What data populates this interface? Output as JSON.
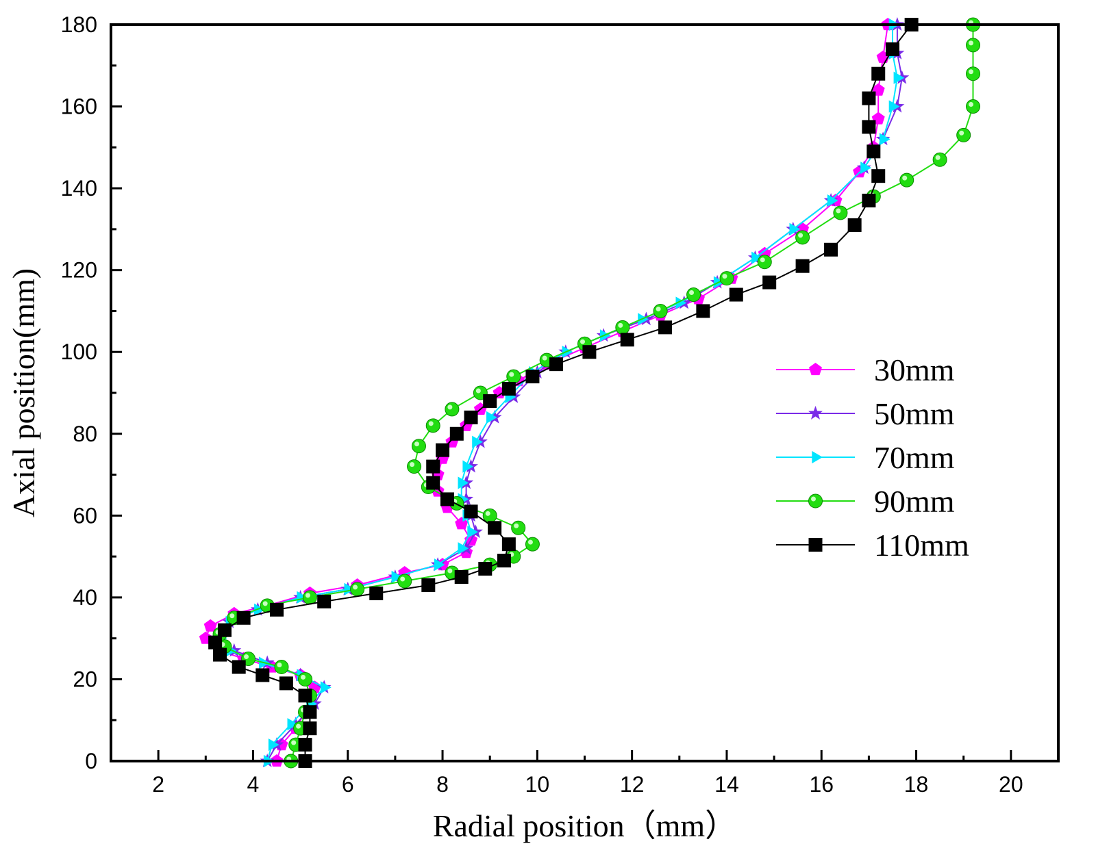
{
  "chart_data": {
    "type": "line",
    "title": "",
    "xlabel": "Radial position（mm）",
    "ylabel": "Axial position(mm)",
    "xlim": [
      1,
      21
    ],
    "ylim": [
      0,
      180
    ],
    "x_ticks": [
      "2",
      "4",
      "6",
      "8",
      "10",
      "12",
      "14",
      "16",
      "18",
      "20"
    ],
    "y_ticks": [
      "0",
      "20",
      "40",
      "60",
      "80",
      "100",
      "120",
      "140",
      "160",
      "180"
    ],
    "grid": false,
    "legend_position": "right",
    "series": [
      {
        "name": "30mm",
        "color": "#ff00ff",
        "marker": "pentagon",
        "points": [
          [
            4.5,
            0
          ],
          [
            4.6,
            4
          ],
          [
            4.9,
            8
          ],
          [
            5.1,
            12
          ],
          [
            5.2,
            16
          ],
          [
            5.3,
            18
          ],
          [
            5.0,
            21
          ],
          [
            4.4,
            23
          ],
          [
            3.8,
            25
          ],
          [
            3.3,
            27
          ],
          [
            3.0,
            30
          ],
          [
            3.1,
            33
          ],
          [
            3.6,
            36
          ],
          [
            4.3,
            38
          ],
          [
            5.2,
            41
          ],
          [
            6.2,
            43
          ],
          [
            7.2,
            46
          ],
          [
            8.0,
            48
          ],
          [
            8.5,
            51
          ],
          [
            8.6,
            54
          ],
          [
            8.4,
            58
          ],
          [
            8.1,
            62
          ],
          [
            7.9,
            66
          ],
          [
            7.9,
            70
          ],
          [
            8.0,
            74
          ],
          [
            8.2,
            78
          ],
          [
            8.5,
            82
          ],
          [
            8.8,
            86
          ],
          [
            9.2,
            90
          ],
          [
            9.6,
            93
          ],
          [
            10.2,
            97
          ],
          [
            11.0,
            101
          ],
          [
            11.8,
            105
          ],
          [
            12.6,
            109
          ],
          [
            13.4,
            113
          ],
          [
            14.1,
            118
          ],
          [
            14.8,
            124
          ],
          [
            15.6,
            130
          ],
          [
            16.3,
            137
          ],
          [
            16.8,
            144
          ],
          [
            17.1,
            150
          ],
          [
            17.2,
            157
          ],
          [
            17.2,
            164
          ],
          [
            17.3,
            172
          ],
          [
            17.4,
            180
          ]
        ]
      },
      {
        "name": "50mm",
        "color": "#7a2be8",
        "marker": "star",
        "points": [
          [
            4.3,
            0
          ],
          [
            4.5,
            4
          ],
          [
            4.9,
            9
          ],
          [
            5.3,
            14
          ],
          [
            5.5,
            18
          ],
          [
            5.0,
            21
          ],
          [
            4.3,
            24
          ],
          [
            3.6,
            27
          ],
          [
            3.3,
            30
          ],
          [
            3.5,
            34
          ],
          [
            4.1,
            37
          ],
          [
            5.0,
            40
          ],
          [
            6.0,
            42
          ],
          [
            7.0,
            45
          ],
          [
            7.9,
            48
          ],
          [
            8.5,
            52
          ],
          [
            8.7,
            56
          ],
          [
            8.6,
            60
          ],
          [
            8.5,
            64
          ],
          [
            8.5,
            68
          ],
          [
            8.6,
            72
          ],
          [
            8.8,
            78
          ],
          [
            9.1,
            84
          ],
          [
            9.5,
            89
          ],
          [
            10.0,
            95
          ],
          [
            10.6,
            100
          ],
          [
            11.4,
            104
          ],
          [
            12.3,
            108
          ],
          [
            13.1,
            112
          ],
          [
            13.8,
            117
          ],
          [
            14.6,
            123
          ],
          [
            15.4,
            130
          ],
          [
            16.2,
            137
          ],
          [
            16.9,
            145
          ],
          [
            17.3,
            152
          ],
          [
            17.6,
            160
          ],
          [
            17.7,
            167
          ],
          [
            17.6,
            173
          ],
          [
            17.6,
            180
          ]
        ]
      },
      {
        "name": "70mm",
        "color": "#00e5ff",
        "marker": "triangle-right",
        "points": [
          [
            4.3,
            0
          ],
          [
            4.4,
            4
          ],
          [
            4.8,
            9
          ],
          [
            5.2,
            14
          ],
          [
            5.5,
            18
          ],
          [
            5.0,
            21
          ],
          [
            4.2,
            24
          ],
          [
            3.5,
            27
          ],
          [
            3.3,
            30
          ],
          [
            3.5,
            34
          ],
          [
            4.1,
            37
          ],
          [
            5.0,
            40
          ],
          [
            6.0,
            42
          ],
          [
            7.0,
            45
          ],
          [
            7.9,
            48
          ],
          [
            8.4,
            52
          ],
          [
            8.6,
            56
          ],
          [
            8.5,
            60
          ],
          [
            8.4,
            64
          ],
          [
            8.4,
            68
          ],
          [
            8.5,
            72
          ],
          [
            8.7,
            78
          ],
          [
            9.0,
            84
          ],
          [
            9.4,
            89
          ],
          [
            9.9,
            95
          ],
          [
            10.6,
            100
          ],
          [
            11.4,
            104
          ],
          [
            12.2,
            108
          ],
          [
            13.0,
            112
          ],
          [
            13.8,
            117
          ],
          [
            14.6,
            123
          ],
          [
            15.4,
            130
          ],
          [
            16.2,
            137
          ],
          [
            16.9,
            145
          ],
          [
            17.3,
            152
          ],
          [
            17.5,
            160
          ],
          [
            17.6,
            167
          ],
          [
            17.5,
            173
          ],
          [
            17.5,
            180
          ]
        ]
      },
      {
        "name": "90mm",
        "color": "#22dd11",
        "marker": "circle",
        "points": [
          [
            4.8,
            0
          ],
          [
            4.9,
            4
          ],
          [
            5.0,
            8
          ],
          [
            5.1,
            12
          ],
          [
            5.2,
            16
          ],
          [
            5.1,
            20
          ],
          [
            4.6,
            23
          ],
          [
            3.9,
            25
          ],
          [
            3.4,
            28
          ],
          [
            3.3,
            31
          ],
          [
            3.6,
            35
          ],
          [
            4.3,
            38
          ],
          [
            5.2,
            40
          ],
          [
            6.2,
            42
          ],
          [
            7.2,
            44
          ],
          [
            8.2,
            46
          ],
          [
            9.0,
            48
          ],
          [
            9.5,
            50
          ],
          [
            9.9,
            53
          ],
          [
            9.6,
            57
          ],
          [
            9.0,
            60
          ],
          [
            8.3,
            63
          ],
          [
            7.7,
            67
          ],
          [
            7.4,
            72
          ],
          [
            7.5,
            77
          ],
          [
            7.8,
            82
          ],
          [
            8.2,
            86
          ],
          [
            8.8,
            90
          ],
          [
            9.5,
            94
          ],
          [
            10.2,
            98
          ],
          [
            11.0,
            102
          ],
          [
            11.8,
            106
          ],
          [
            12.6,
            110
          ],
          [
            13.3,
            114
          ],
          [
            14.0,
            118
          ],
          [
            14.8,
            122
          ],
          [
            15.6,
            128
          ],
          [
            16.4,
            134
          ],
          [
            17.1,
            138
          ],
          [
            17.8,
            142
          ],
          [
            18.5,
            147
          ],
          [
            19.0,
            153
          ],
          [
            19.2,
            160
          ],
          [
            19.2,
            168
          ],
          [
            19.2,
            175
          ],
          [
            19.2,
            180
          ]
        ]
      },
      {
        "name": "110mm",
        "color": "#000000",
        "marker": "square",
        "points": [
          [
            5.1,
            0
          ],
          [
            5.1,
            4
          ],
          [
            5.2,
            8
          ],
          [
            5.2,
            12
          ],
          [
            5.1,
            16
          ],
          [
            4.7,
            19
          ],
          [
            4.2,
            21
          ],
          [
            3.7,
            23
          ],
          [
            3.3,
            26
          ],
          [
            3.2,
            29
          ],
          [
            3.4,
            32
          ],
          [
            3.8,
            35
          ],
          [
            4.5,
            37
          ],
          [
            5.5,
            39
          ],
          [
            6.6,
            41
          ],
          [
            7.7,
            43
          ],
          [
            8.4,
            45
          ],
          [
            8.9,
            47
          ],
          [
            9.3,
            49
          ],
          [
            9.4,
            53
          ],
          [
            9.1,
            57
          ],
          [
            8.6,
            61
          ],
          [
            8.1,
            64
          ],
          [
            7.8,
            68
          ],
          [
            7.8,
            72
          ],
          [
            8.0,
            76
          ],
          [
            8.3,
            80
          ],
          [
            8.6,
            84
          ],
          [
            9.0,
            88
          ],
          [
            9.4,
            91
          ],
          [
            9.9,
            94
          ],
          [
            10.4,
            97
          ],
          [
            11.1,
            100
          ],
          [
            11.9,
            103
          ],
          [
            12.7,
            106
          ],
          [
            13.5,
            110
          ],
          [
            14.2,
            114
          ],
          [
            14.9,
            117
          ],
          [
            15.6,
            121
          ],
          [
            16.2,
            125
          ],
          [
            16.7,
            131
          ],
          [
            17.0,
            137
          ],
          [
            17.2,
            143
          ],
          [
            17.1,
            149
          ],
          [
            17.0,
            155
          ],
          [
            17.0,
            162
          ],
          [
            17.2,
            168
          ],
          [
            17.5,
            174
          ],
          [
            17.9,
            180
          ]
        ]
      }
    ]
  }
}
